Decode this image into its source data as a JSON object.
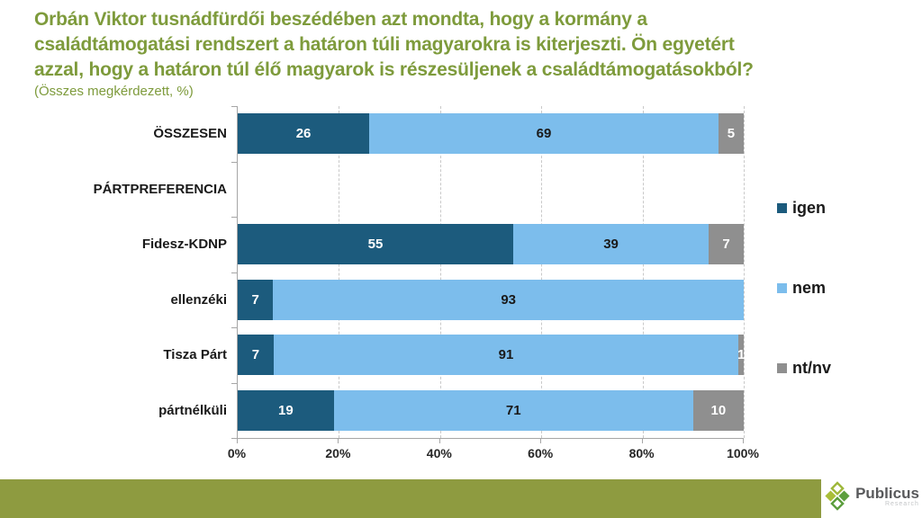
{
  "header": {
    "title_lines": [
      "Orbán Viktor tusnádfürdői beszédében azt mondta, hogy a kormány a",
      "családtámogatási rendszert a határon túli magyarokra is kiterjeszti. Ön egyetért",
      "azzal, hogy a határon túl élő magyarok is részesüljenek a családtámogatásokból?"
    ],
    "subtitle": "(Összes megkérdezett, %)",
    "title_color": "#7E9B3C"
  },
  "chart_data": {
    "type": "bar",
    "orientation": "horizontal",
    "stacked": true,
    "title": "Orbán Viktor tusnádfürdői beszédében azt mondta, hogy a kormány a családtámogatási rendszert a határon túli magyarokra is kiterjeszti. Ön egyetért azzal, hogy a határon túl élő magyarok is részesüljenek a családtámogatásokból?",
    "subtitle": "(Összes megkérdezett, %)",
    "categories": [
      "ÖSSZESEN",
      "PÁRTPREFERENCIA",
      "Fidesz-KDNP",
      "ellenzéki",
      "Tisza Párt",
      "pártnélküli"
    ],
    "section_header_rows": [
      1
    ],
    "series": [
      {
        "name": "igen",
        "color": "#1C5B7D",
        "label_color": "#FFFFFF",
        "values": [
          26,
          null,
          55,
          7,
          7,
          19
        ]
      },
      {
        "name": "nem",
        "color": "#7CBDEC",
        "label_color": "#1A1A1A",
        "values": [
          69,
          null,
          39,
          93,
          91,
          71
        ]
      },
      {
        "name": "nt/nv",
        "color": "#8F8F8F",
        "label_color": "#FFFFFF",
        "values": [
          5,
          null,
          7,
          0,
          1,
          10
        ]
      }
    ],
    "x_ticks": [
      "0%",
      "20%",
      "40%",
      "60%",
      "80%",
      "100%"
    ],
    "xlim": [
      0,
      100
    ],
    "legend_position": "right",
    "gridlines": "dashed-vertical"
  },
  "footer": {
    "bar_color": "#8E9B40",
    "logo": {
      "name": "Publicus",
      "sub": "Research"
    }
  }
}
